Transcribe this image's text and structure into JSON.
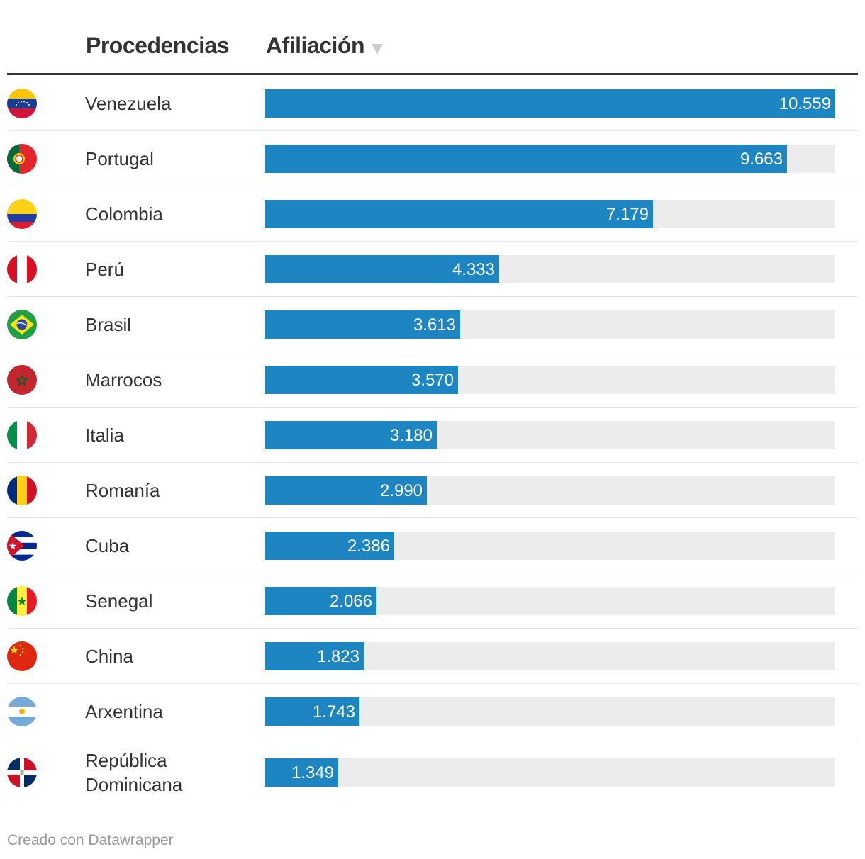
{
  "header": {
    "origins_label": "Procedencias",
    "affiliation_label": "Afiliación",
    "sort_icon": "triangle-down-icon"
  },
  "footer": {
    "credit": "Creado con Datawrapper"
  },
  "colors": {
    "bar": "#1d86c2",
    "track": "#ececec",
    "text": "#333333"
  },
  "chart_data": {
    "type": "bar",
    "orientation": "horizontal",
    "title": "",
    "xlabel": "Afiliación",
    "ylabel": "Procedencias",
    "xlim": [
      0,
      10559
    ],
    "categories": [
      "Venezuela",
      "Portugal",
      "Colombia",
      "Perú",
      "Brasil",
      "Marrocos",
      "Italia",
      "Romanía",
      "Cuba",
      "Senegal",
      "China",
      "Arxentina",
      "República Dominicana"
    ],
    "values": [
      10559,
      9663,
      7179,
      4333,
      3613,
      3570,
      3180,
      2990,
      2386,
      2066,
      1823,
      1743,
      1349
    ],
    "value_labels": [
      "10.559",
      "9.663",
      "7.179",
      "4.333",
      "3.613",
      "3.570",
      "3.180",
      "2.990",
      "2.386",
      "2.066",
      "1.823",
      "1.743",
      "1.349"
    ],
    "flags": [
      "venezuela-flag-icon",
      "portugal-flag-icon",
      "colombia-flag-icon",
      "peru-flag-icon",
      "brazil-flag-icon",
      "morocco-flag-icon",
      "italy-flag-icon",
      "romania-flag-icon",
      "cuba-flag-icon",
      "senegal-flag-icon",
      "china-flag-icon",
      "argentina-flag-icon",
      "dominican-republic-flag-icon"
    ]
  }
}
